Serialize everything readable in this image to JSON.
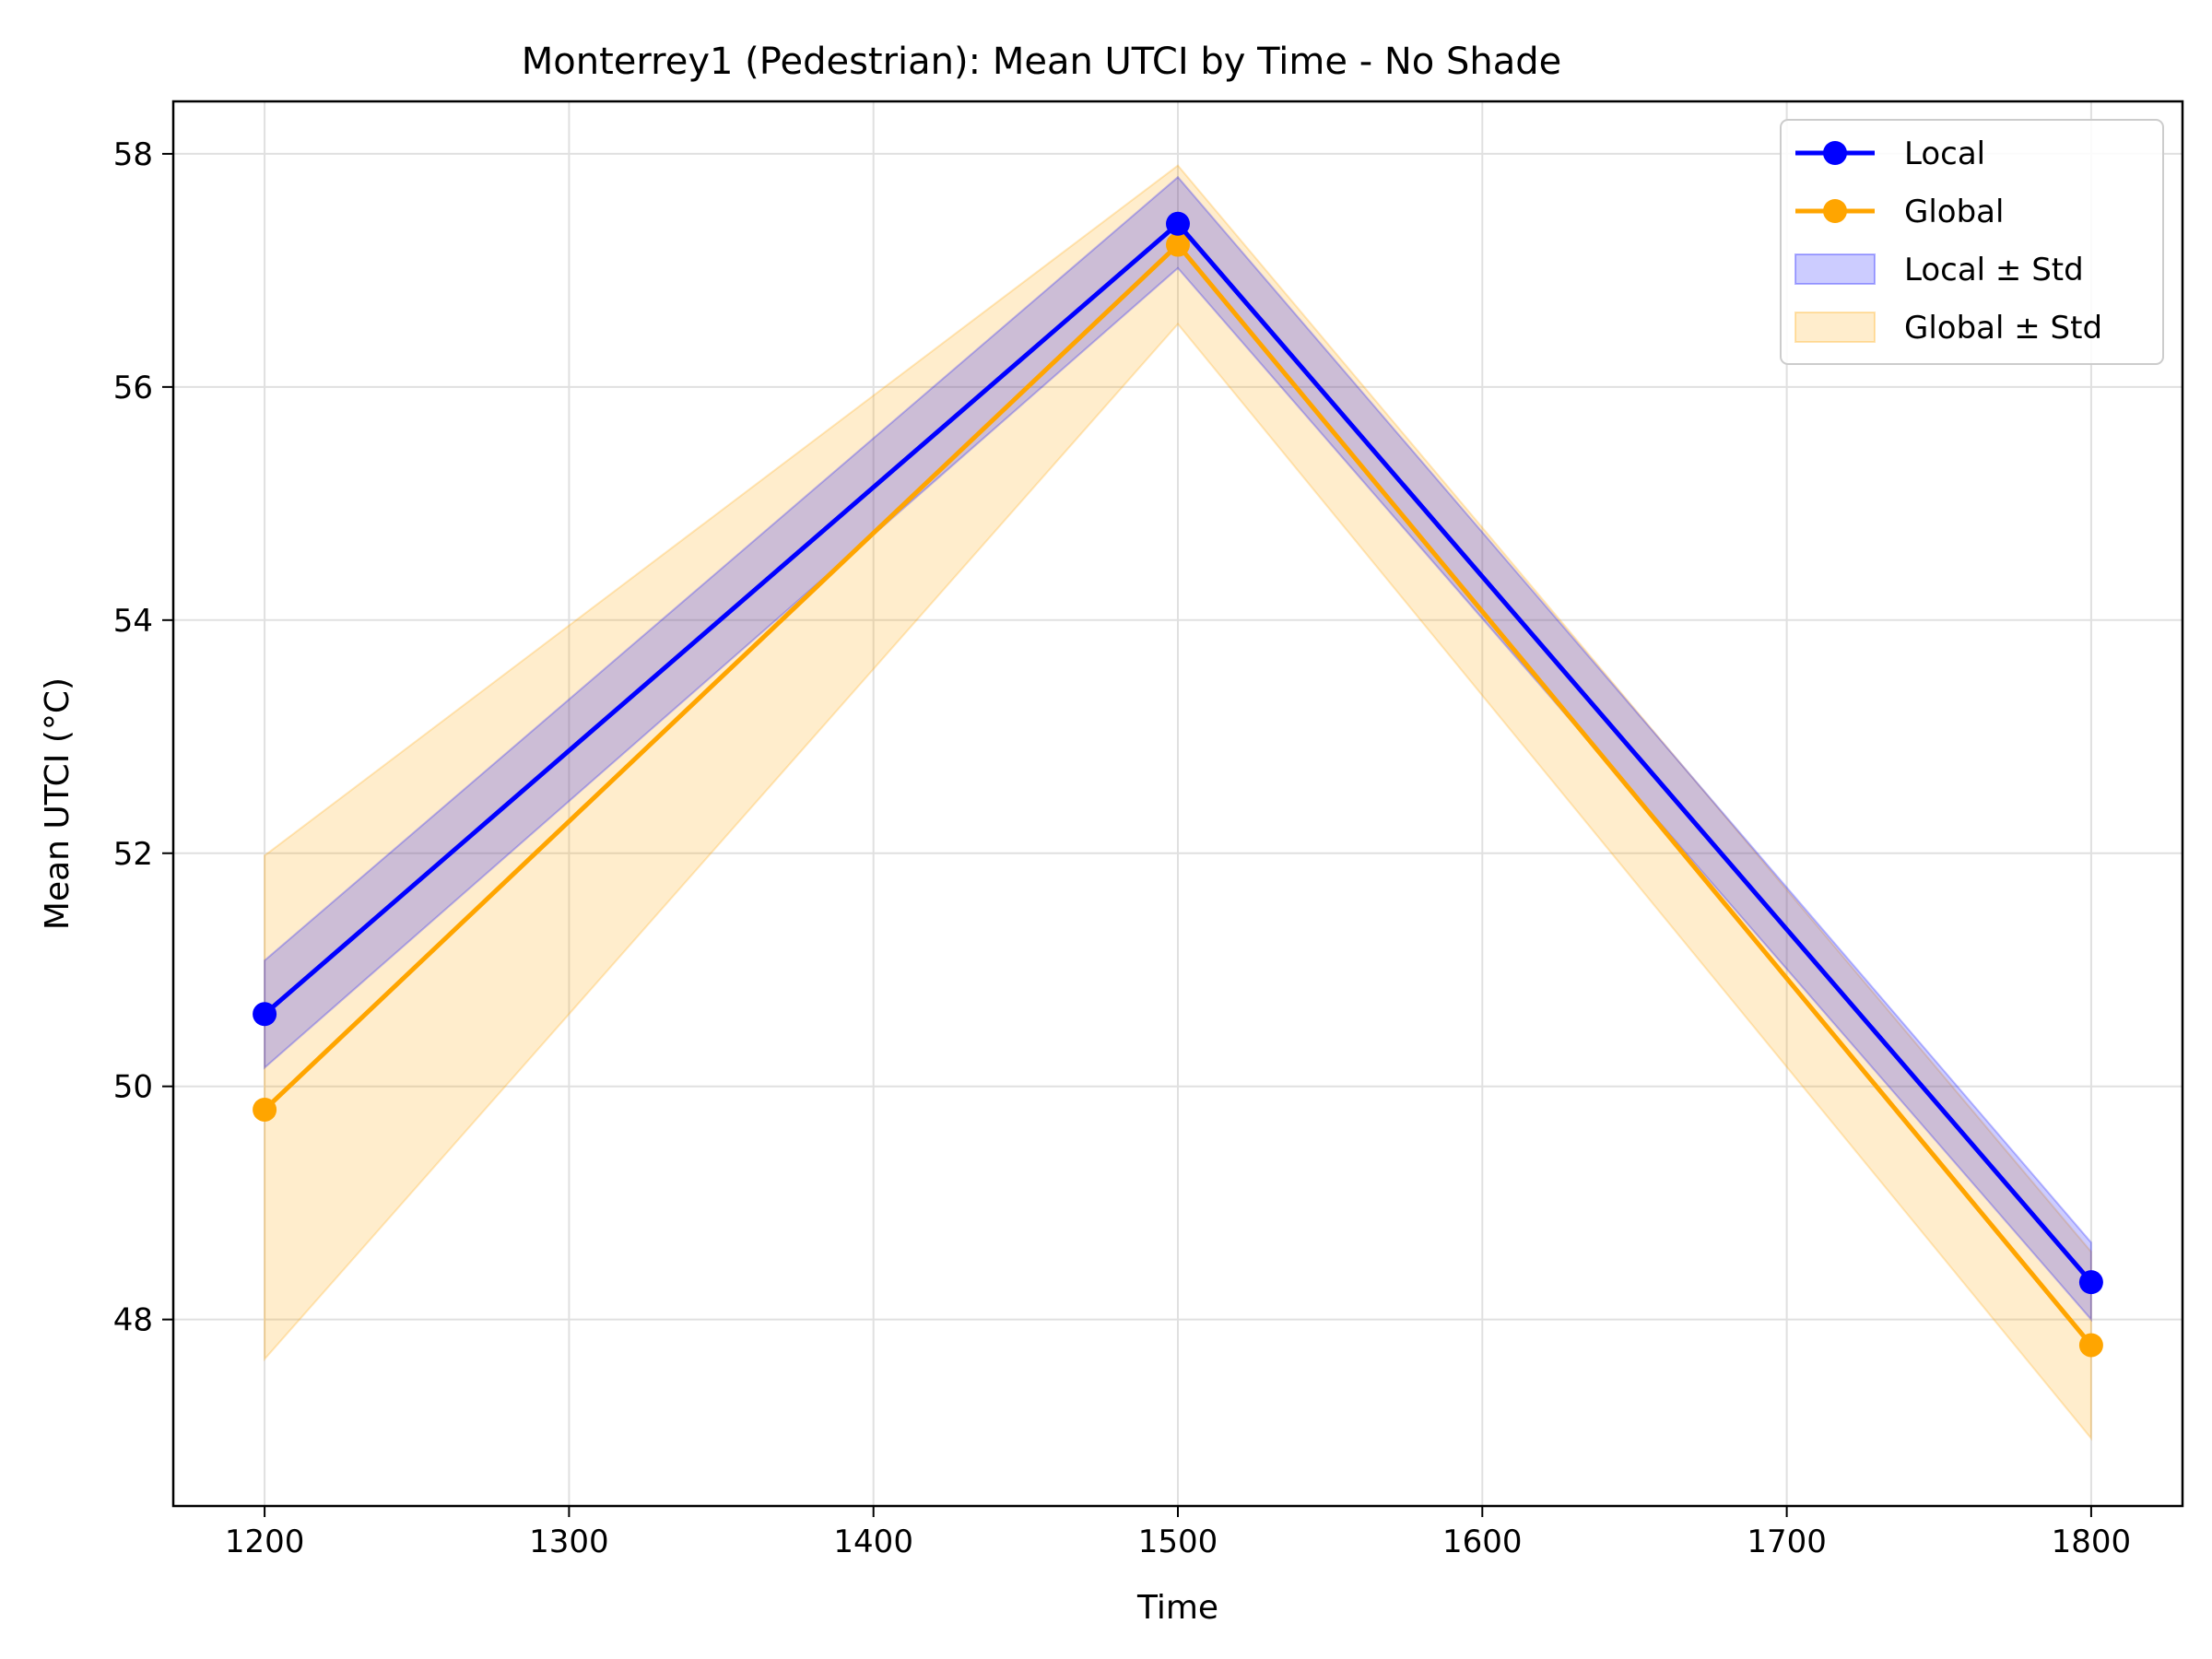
{
  "chart_data": {
    "type": "line",
    "title": "Monterrey1 (Pedestrian): Mean UTCI by Time - No Shade",
    "xlabel": "Time",
    "ylabel": "Mean UTCI (°C)",
    "x": [
      1200,
      1500,
      1800
    ],
    "xticks": [
      1200,
      1300,
      1400,
      1500,
      1600,
      1700,
      1800
    ],
    "yticks": [
      48,
      50,
      52,
      54,
      56,
      58
    ],
    "xlim": [
      1170,
      1830
    ],
    "ylim": [
      46.4,
      58.45
    ],
    "grid": true,
    "legend_position": "top-right",
    "series": [
      {
        "name": "Local",
        "color": "#0000ff",
        "values": [
          50.62,
          57.4,
          48.32
        ],
        "std_lower": [
          50.16,
          57.02,
          48.0
        ],
        "std_upper": [
          51.08,
          57.8,
          48.66
        ]
      },
      {
        "name": "Global",
        "color": "#ffa500",
        "values": [
          49.8,
          57.22,
          47.78
        ],
        "std_lower": [
          47.66,
          56.54,
          46.98
        ],
        "std_upper": [
          51.98,
          57.9,
          48.58
        ]
      }
    ],
    "bands": [
      {
        "name": "Local ± Std",
        "color": "#0000ff",
        "series_index": 0
      },
      {
        "name": "Global ± Std",
        "color": "#ffa500",
        "series_index": 1
      }
    ]
  }
}
